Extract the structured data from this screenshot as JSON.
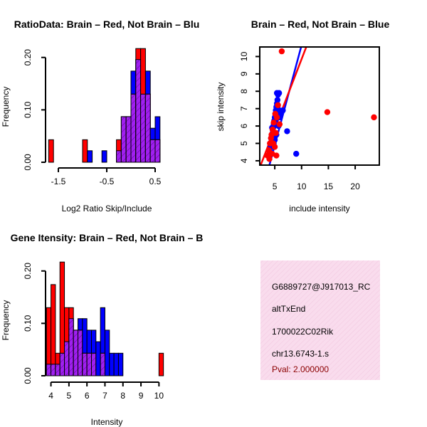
{
  "colors": {
    "red": "#ff0000",
    "blue": "#0000ff",
    "purple": "#a020f0",
    "axis": "#000000",
    "pval": "#8b0000",
    "info_bg": "#f9dced"
  },
  "chart_data": [
    {
      "id": "ratio-hist",
      "type": "bar",
      "title": "RatioData: Brain – Red, Not Brain – Blu",
      "xlabel": "Log2 Ratio Skip/Include",
      "ylabel": "Frequency",
      "xlim": [
        -1.75,
        0.75
      ],
      "ylim": [
        0,
        0.22
      ],
      "xticks": [
        -1.5,
        -0.5,
        0.5
      ],
      "xtick_labels": [
        "-1.5",
        "-0.5",
        "0.5"
      ],
      "yticks": [
        0,
        0.1,
        0.2
      ],
      "ytick_labels": [
        "0.00",
        "0.10",
        "0.20"
      ],
      "bin_width": 0.1,
      "bin_starts": [
        -1.7,
        -1.0,
        -0.9,
        -0.6,
        -0.3,
        -0.2,
        -0.1,
        0.0,
        0.1,
        0.2,
        0.3,
        0.4,
        0.5,
        0.6
      ],
      "series": [
        {
          "name": "Brain",
          "color": "red",
          "values": [
            0.043,
            0.043,
            0,
            0,
            0.043,
            0.087,
            0.087,
            0.13,
            0.217,
            0.217,
            0.13,
            0.043,
            0.043,
            0
          ]
        },
        {
          "name": "Not Brain",
          "color": "blue",
          "values": [
            0,
            0,
            0.022,
            0.022,
            0.022,
            0.087,
            0.087,
            0.174,
            0.196,
            0.13,
            0.174,
            0.065,
            0.087,
            0
          ]
        }
      ]
    },
    {
      "id": "scatter",
      "type": "scatter",
      "title": "Brain – Red, Not Brain – Blue",
      "xlabel": "include intensity",
      "ylabel": "skip intensity",
      "xlim": [
        2.2,
        24.5
      ],
      "ylim": [
        3.75,
        10.55
      ],
      "xticks": [
        5,
        10,
        15,
        20
      ],
      "xtick_labels": [
        "5",
        "10",
        "15",
        "20"
      ],
      "yticks": [
        4,
        5,
        6,
        7,
        8,
        9,
        10
      ],
      "ytick_labels": [
        "4",
        "5",
        "6",
        "7",
        "8",
        "9",
        "10"
      ],
      "series": [
        {
          "name": "Not Brain",
          "color": "blue",
          "x": [
            3.8,
            4.0,
            4.2,
            4.4,
            4.5,
            4.6,
            4.7,
            4.8,
            4.9,
            5.0,
            5.1,
            5.2,
            5.3,
            5.4,
            5.5,
            5.6,
            5.8,
            4.3,
            4.6,
            4.9,
            5.2,
            5.5,
            4.1,
            4.4,
            4.7,
            5.0,
            5.3,
            5.7,
            6.0,
            4.5,
            5.1,
            5.6,
            7.3,
            9.0,
            6.5,
            5.4,
            4.8,
            5.9
          ],
          "y": [
            4.3,
            4.6,
            4.9,
            5.1,
            5.4,
            5.6,
            5.9,
            6.1,
            6.3,
            6.5,
            6.7,
            6.9,
            7.1,
            7.3,
            7.5,
            7.8,
            7.9,
            5.3,
            5.8,
            6.1,
            6.4,
            6.8,
            4.5,
            4.8,
            5.0,
            5.2,
            5.5,
            6.0,
            6.7,
            5.9,
            6.2,
            7.0,
            5.7,
            4.4,
            6.9,
            7.9,
            5.0,
            6.5
          ]
        },
        {
          "name": "Brain",
          "color": "red",
          "x": [
            6.3,
            14.8,
            23.5,
            3.6,
            3.9,
            4.1,
            4.3,
            4.6,
            4.8,
            5.1,
            5.4,
            5.6,
            4.4,
            4.7,
            5.0,
            5.3,
            5.9,
            4.0,
            4.5,
            5.2
          ],
          "y": [
            10.3,
            6.8,
            6.5,
            4.3,
            4.6,
            5.0,
            5.3,
            5.8,
            6.2,
            6.7,
            6.5,
            7.2,
            5.5,
            5.0,
            4.8,
            4.3,
            6.1,
            4.1,
            4.4,
            5.6
          ]
        }
      ],
      "fit_lines": [
        {
          "name": "Not Brain fit",
          "color": "blue",
          "slope": 1.15,
          "intercept": -0.85
        },
        {
          "name": "Brain fit",
          "color": "red",
          "slope": 0.8,
          "intercept": 1.85
        }
      ]
    },
    {
      "id": "intensity-hist",
      "type": "bar",
      "title": "Gene Itensity: Brain – Red, Not Brain – B",
      "xlabel": "Intensity",
      "ylabel": "Frequency",
      "xlim": [
        3.7,
        10.5
      ],
      "ylim": [
        0,
        0.22
      ],
      "xticks": [
        4,
        5,
        6,
        7,
        8,
        9,
        10
      ],
      "xtick_labels": [
        "4",
        "5",
        "6",
        "7",
        "8",
        "9",
        "10"
      ],
      "yticks": [
        0,
        0.1,
        0.2
      ],
      "ytick_labels": [
        "0.00",
        "0.10",
        "0.20"
      ],
      "bin_width": 0.25,
      "bin_starts": [
        3.75,
        4.0,
        4.25,
        4.5,
        4.75,
        5.0,
        5.25,
        5.5,
        5.75,
        6.0,
        6.25,
        6.5,
        6.75,
        7.0,
        7.25,
        7.5,
        7.75,
        10.0
      ],
      "series": [
        {
          "name": "Brain",
          "color": "red",
          "values": [
            0.13,
            0.174,
            0.043,
            0.217,
            0.13,
            0.13,
            0.087,
            0.087,
            0.043,
            0.043,
            0.043,
            0,
            0.043,
            0,
            0,
            0,
            0,
            0.043
          ]
        },
        {
          "name": "Not Brain",
          "color": "blue",
          "values": [
            0.022,
            0.022,
            0.022,
            0.043,
            0.065,
            0.109,
            0.087,
            0.109,
            0.109,
            0.087,
            0.087,
            0.065,
            0.13,
            0.087,
            0.043,
            0.043,
            0.043,
            0
          ]
        }
      ]
    }
  ],
  "info": {
    "lines": [
      "G6889727@J917013_RC",
      "altTxEnd",
      "1700022C02Rik",
      "chr13.6743-1.s"
    ],
    "pval": "Pval: 2.000000"
  }
}
